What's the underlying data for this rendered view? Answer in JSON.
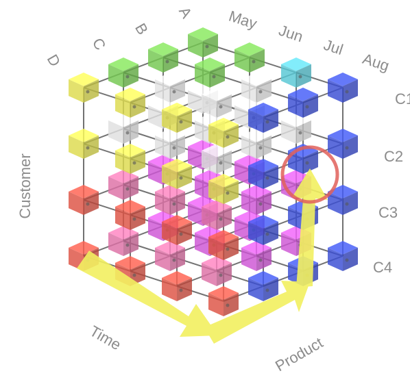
{
  "labels": {
    "customer_axis": "Customer",
    "time_axis": "Time",
    "product_axis": "Product",
    "top_left": [
      "D",
      "C",
      "B",
      "A"
    ],
    "top_right": [
      "May",
      "Jun",
      "Jul",
      "Aug"
    ],
    "right_side": [
      "C1",
      "C2",
      "C3",
      "C4"
    ]
  },
  "colors": {
    "green": "#7ed957",
    "cyan": "#5fd9e8",
    "blue": "#3f55e6",
    "yellow": "#f0ee55",
    "red": "#f05a4a",
    "pink": "#f07ab4",
    "magenta": "#e05ce8",
    "arrow": "#f2f060",
    "highlight": "#e0605a",
    "frame": "#444444",
    "label": "#8c8c8c"
  }
}
